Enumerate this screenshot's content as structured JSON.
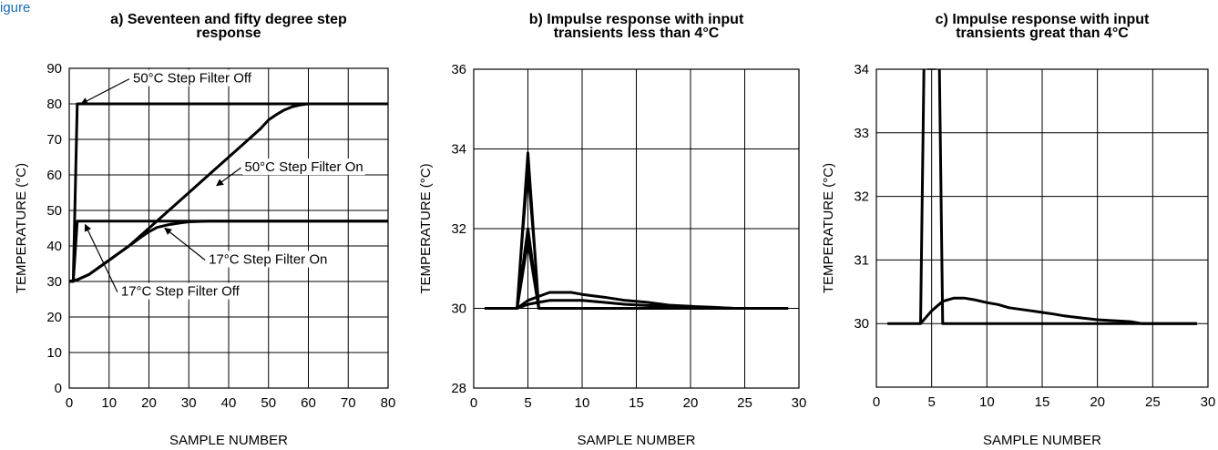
{
  "caption_fragment": "igure",
  "chart_data": [
    {
      "type": "line",
      "title_lines": [
        "a) Seventeen and fifty degree step",
        "response"
      ],
      "xlabel": "SAMPLE NUMBER",
      "ylabel": "TEMPERATURE (°C)",
      "xlim": [
        0,
        80
      ],
      "ylim": [
        0,
        90
      ],
      "xticks": [
        0,
        10,
        20,
        30,
        40,
        50,
        60,
        70,
        80
      ],
      "yticks": [
        0,
        10,
        20,
        30,
        40,
        50,
        60,
        70,
        80,
        90
      ],
      "grid": true,
      "series": [
        {
          "name": "50°C Step Filter Off",
          "x": [
            0,
            1,
            2,
            80
          ],
          "y": [
            30,
            30,
            80,
            80
          ]
        },
        {
          "name": "50°C Step Filter On",
          "x": [
            0,
            2,
            5,
            10,
            15,
            20,
            25,
            30,
            35,
            40,
            45,
            48,
            50,
            52,
            54,
            56,
            58,
            60,
            65,
            80
          ],
          "y": [
            30,
            30.5,
            32,
            36,
            40,
            45,
            50,
            55,
            60,
            65,
            70,
            73,
            75.5,
            77,
            78.3,
            79.2,
            79.7,
            80,
            80,
            80
          ]
        },
        {
          "name": "17°C Step Filter Off",
          "x": [
            0,
            1,
            2,
            80
          ],
          "y": [
            30,
            30,
            47,
            47
          ]
        },
        {
          "name": "17°C Step Filter On",
          "x": [
            0,
            2,
            5,
            10,
            15,
            18,
            20,
            22,
            25,
            28,
            30,
            35,
            80
          ],
          "y": [
            30,
            30.5,
            32,
            36,
            40,
            42.5,
            44,
            45.2,
            46,
            46.5,
            46.8,
            47,
            47
          ]
        }
      ],
      "annotations": [
        {
          "text": "50°C Step Filter Off",
          "x": 16,
          "y": 86,
          "arrow_to": [
            3,
            80
          ]
        },
        {
          "text": "50°C Step Filter On",
          "x": 44,
          "y": 61,
          "arrow_to": [
            37,
            57
          ]
        },
        {
          "text": "17°C Step Filter On",
          "x": 35,
          "y": 35,
          "arrow_to": [
            24,
            45
          ]
        },
        {
          "text": "17°C Step Filter Off",
          "x": 13,
          "y": 26,
          "arrow_to": [
            4,
            46
          ]
        }
      ]
    },
    {
      "type": "line",
      "title_lines": [
        "b) Impulse response with input",
        "transients less than 4°C"
      ],
      "xlabel": "SAMPLE NUMBER",
      "ylabel": "TEMPERATURE (°C)",
      "xlim": [
        0,
        30
      ],
      "ylim": [
        28,
        36
      ],
      "xticks": [
        0,
        5,
        10,
        15,
        20,
        25,
        30
      ],
      "yticks": [
        28,
        30,
        32,
        34,
        36
      ],
      "grid": true,
      "series": [
        {
          "x": [
            1,
            4,
            5,
            6,
            29
          ],
          "y": [
            30,
            30,
            33.9,
            30,
            30
          ],
          "thin": false
        },
        {
          "x": [
            4,
            5,
            6
          ],
          "y": [
            30,
            33.3,
            30
          ],
          "thin": true
        },
        {
          "x": [
            4,
            5,
            6
          ],
          "y": [
            30,
            32,
            30
          ],
          "thin": false
        },
        {
          "x": [
            4,
            5,
            6
          ],
          "y": [
            30,
            31.7,
            30
          ],
          "thin": false
        },
        {
          "x": [
            4,
            5,
            6,
            7,
            8,
            9,
            10,
            12,
            14,
            16,
            18,
            20,
            22,
            24,
            29
          ],
          "y": [
            30,
            30.2,
            30.3,
            30.4,
            30.4,
            30.4,
            30.35,
            30.28,
            30.2,
            30.15,
            30.08,
            30.05,
            30.03,
            30,
            30
          ]
        },
        {
          "x": [
            4,
            5,
            6,
            7,
            8,
            10,
            12,
            14,
            16,
            18,
            20,
            22,
            24,
            29
          ],
          "y": [
            30,
            30.1,
            30.15,
            30.2,
            30.2,
            30.2,
            30.15,
            30.1,
            30.07,
            30.05,
            30.03,
            30.02,
            30,
            30
          ]
        }
      ]
    },
    {
      "type": "line",
      "title_lines": [
        "c) Impulse response with input",
        "transients great than 4°C"
      ],
      "xlabel": "SAMPLE NUMBER",
      "ylabel": "TEMPERATURE (°C)",
      "xlim": [
        0,
        30
      ],
      "ylim": [
        29,
        34
      ],
      "xticks": [
        0,
        5,
        10,
        15,
        20,
        25,
        30
      ],
      "yticks": [
        30,
        31,
        32,
        33,
        34
      ],
      "grid": true,
      "series": [
        {
          "x": [
            1,
            4,
            4.3
          ],
          "y": [
            30,
            30,
            34
          ],
          "thin": false
        },
        {
          "x": [
            5.7,
            6,
            29
          ],
          "y": [
            34,
            30,
            30
          ],
          "thin": false
        },
        {
          "x": [
            4.6,
            5.4
          ],
          "y": [
            34,
            34
          ],
          "thin": true
        },
        {
          "x": [
            4,
            5,
            6,
            7,
            8,
            9,
            10,
            11,
            12,
            14,
            16,
            17,
            18,
            19,
            20,
            21,
            22,
            23,
            24,
            29
          ],
          "y": [
            30,
            30.2,
            30.35,
            30.4,
            30.4,
            30.37,
            30.33,
            30.3,
            30.25,
            30.2,
            30.15,
            30.12,
            30.1,
            30.08,
            30.06,
            30.05,
            30.04,
            30.03,
            30,
            30
          ]
        }
      ]
    }
  ]
}
